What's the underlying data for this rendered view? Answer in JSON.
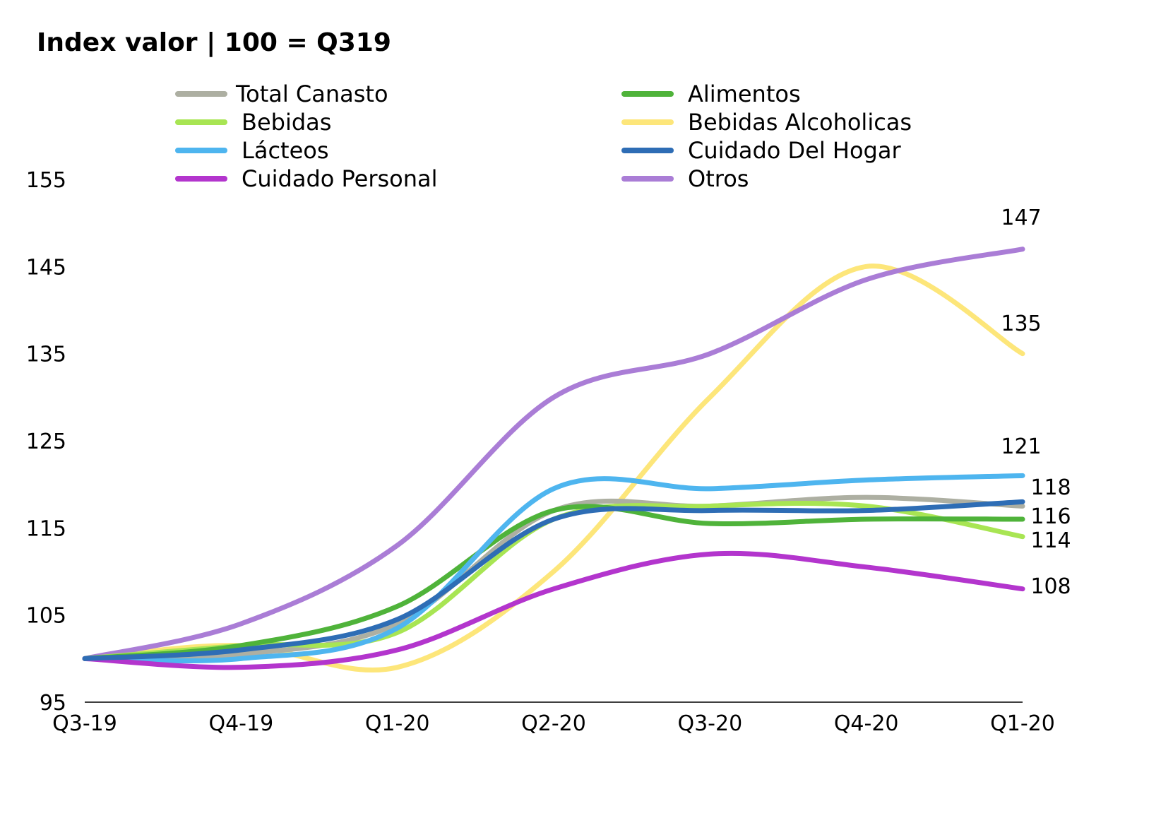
{
  "chart_data": {
    "type": "line",
    "title": "Index valor | 100 = Q319",
    "categories": [
      "Q3-19",
      "Q4-19",
      "Q1-20",
      "Q2-20",
      "Q3-20",
      "Q4-20",
      "Q1-20"
    ],
    "y_ticks": [
      "95",
      "105",
      "115",
      "125",
      "135",
      "145",
      "155"
    ],
    "ylim": [
      95,
      155
    ],
    "grid": false,
    "legend_position": "top",
    "series": [
      {
        "name": "Total Canasto",
        "color": "#ADAFA2",
        "values": [
          100,
          100.5,
          104,
          117,
          117.5,
          118.5,
          117.5
        ]
      },
      {
        "name": "Alimentos",
        "color": "#4FB33A",
        "values": [
          100,
          101.5,
          106,
          117,
          115.5,
          116,
          116
        ]
      },
      {
        "name": "Bebidas",
        "color": "#A8E553",
        "values": [
          100,
          101.5,
          103,
          116,
          117.5,
          117.5,
          114
        ]
      },
      {
        "name": "Bebidas Alcoholicas",
        "color": "#FDE67A",
        "values": [
          100,
          101.5,
          99,
          110,
          130,
          145,
          135
        ]
      },
      {
        "name": "Lácteos",
        "color": "#4EB5EF",
        "values": [
          100,
          100,
          103.5,
          119.5,
          119.5,
          120.5,
          121
        ]
      },
      {
        "name": "Cuidado Del Hogar",
        "color": "#2E6DB5",
        "values": [
          100,
          101,
          104.5,
          116,
          117,
          117,
          118
        ]
      },
      {
        "name": "Cuidado Personal",
        "color": "#B335CD",
        "values": [
          100,
          99,
          101,
          108,
          112,
          110.5,
          108
        ]
      },
      {
        "name": "Otros",
        "color": "#AA7DD6",
        "values": [
          100,
          104,
          113,
          130,
          135,
          143.5,
          147
        ]
      }
    ],
    "end_labels": [
      {
        "text": "147",
        "value": 147
      },
      {
        "text": "135",
        "value": 135
      },
      {
        "text": "121",
        "value": 121
      },
      {
        "text": "118",
        "value": 118
      },
      {
        "text": "116",
        "value": 116
      },
      {
        "text": "114",
        "value": 114
      },
      {
        "text": "108",
        "value": 108
      }
    ]
  }
}
